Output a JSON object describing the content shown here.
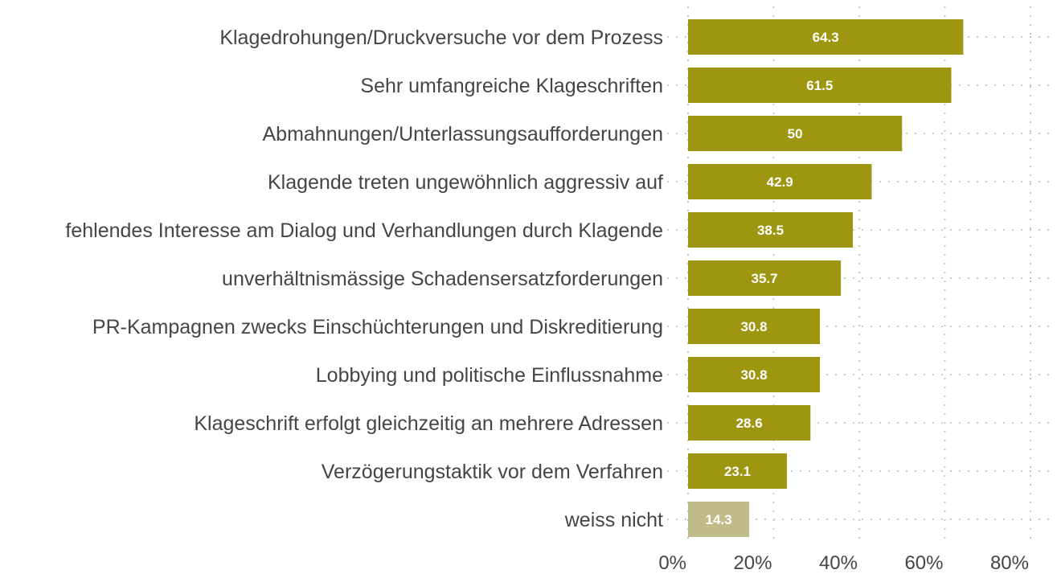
{
  "chart_data": {
    "type": "bar",
    "orientation": "horizontal",
    "title": "",
    "xlabel": "",
    "ylabel": "",
    "xlim": [
      0,
      80
    ],
    "x_ticks": [
      0,
      20,
      40,
      60,
      80
    ],
    "x_tick_labels": [
      "0%",
      "20%",
      "40%",
      "60%",
      "80%"
    ],
    "grid": true,
    "legend": "none",
    "categories": [
      "Klagedrohungen/Druckversuche vor dem Prozess",
      "Sehr umfangreiche Klageschriften",
      "Abmahnungen/Unterlassungsaufforderungen",
      "Klagende treten ungewöhnlich aggressiv auf",
      "fehlendes Interesse am Dialog und Verhandlungen durch Klagende",
      "unverhältnismässige Schadensersatzforderungen",
      "PR-Kampagnen zwecks Einschüchterungen und Diskreditierung",
      "Lobbying und politische Einflussnahme",
      "Klageschrift erfolgt gleichzeitig an mehrere Adressen",
      "Verzögerungstaktik vor dem Verfahren",
      "weiss nicht"
    ],
    "values": [
      64.3,
      61.5,
      50,
      42.9,
      38.5,
      35.7,
      30.8,
      30.8,
      28.6,
      23.1,
      14.3
    ],
    "data_labels": [
      "64.3",
      "61.5",
      "50",
      "42.9",
      "38.5",
      "35.7",
      "30.8",
      "30.8",
      "28.6",
      "23.1",
      "14.3"
    ],
    "colors": [
      "#9e9610",
      "#9e9610",
      "#9e9610",
      "#9e9610",
      "#9e9610",
      "#9e9610",
      "#9e9610",
      "#9e9610",
      "#9e9610",
      "#9e9610",
      "#c1ba89"
    ]
  }
}
